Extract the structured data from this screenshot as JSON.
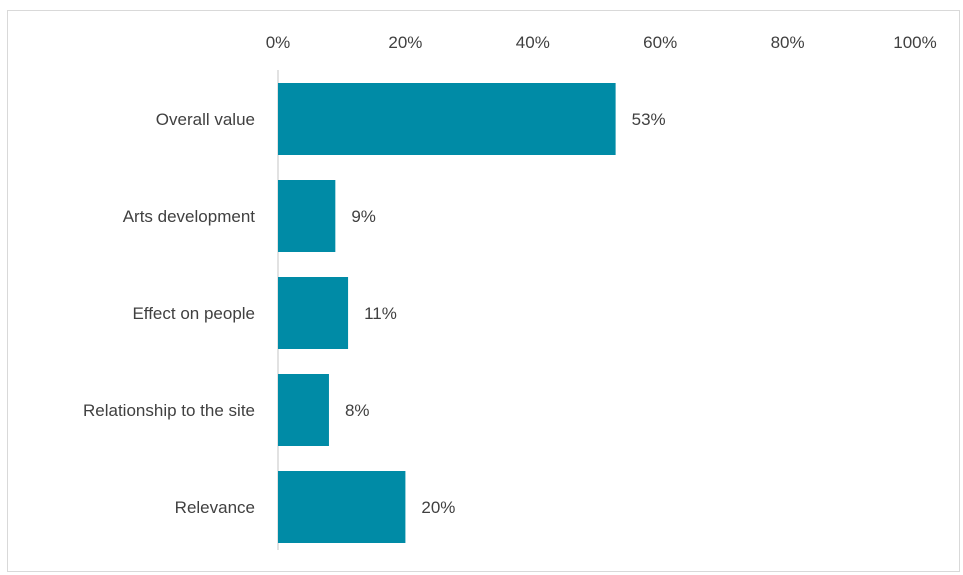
{
  "chart_data": {
    "type": "bar",
    "orientation": "horizontal",
    "categories": [
      "Overall value",
      "Arts development",
      "Effect on people",
      "Relationship to the site",
      "Relevance"
    ],
    "values": [
      53,
      9,
      11,
      8,
      20
    ],
    "data_labels": [
      "53%",
      "9%",
      "11%",
      "8%",
      "20%"
    ],
    "x_ticks": [
      "0%",
      "20%",
      "40%",
      "60%",
      "80%",
      "100%"
    ],
    "x_tick_values": [
      0,
      20,
      40,
      60,
      80,
      100
    ],
    "xlim": [
      0,
      100
    ],
    "x_axis_position": "top",
    "title": "",
    "xlabel": "",
    "ylabel": "",
    "grid": false,
    "legend": "none",
    "bar_color": "#008ba6",
    "axis_color": "#d9d9d9",
    "text_color": "#404040"
  }
}
